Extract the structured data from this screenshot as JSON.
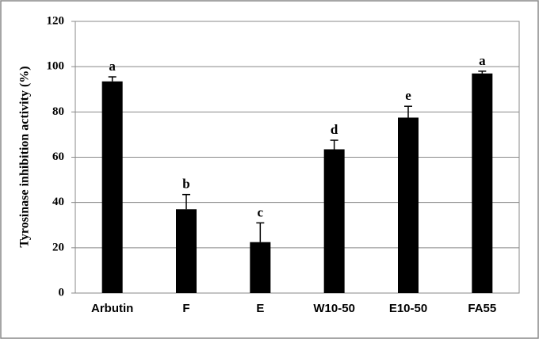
{
  "chart_data": {
    "type": "bar",
    "y_label": "Tyrosinase inhibition activity (%)",
    "categories": [
      "Arbutin",
      "F",
      "E",
      "W10-50",
      "E10-50",
      "FA55"
    ],
    "values": [
      93.5,
      37,
      22.5,
      63.5,
      77.5,
      97
    ],
    "errors": [
      2,
      6.5,
      8.5,
      4,
      5,
      1
    ],
    "annotations": [
      "a",
      "b",
      "c",
      "d",
      "e",
      "a"
    ],
    "color": "#000000",
    "ylim": [
      0,
      120
    ],
    "yticks": [
      0,
      20,
      40,
      60,
      80,
      100,
      120
    ],
    "grid": true
  }
}
